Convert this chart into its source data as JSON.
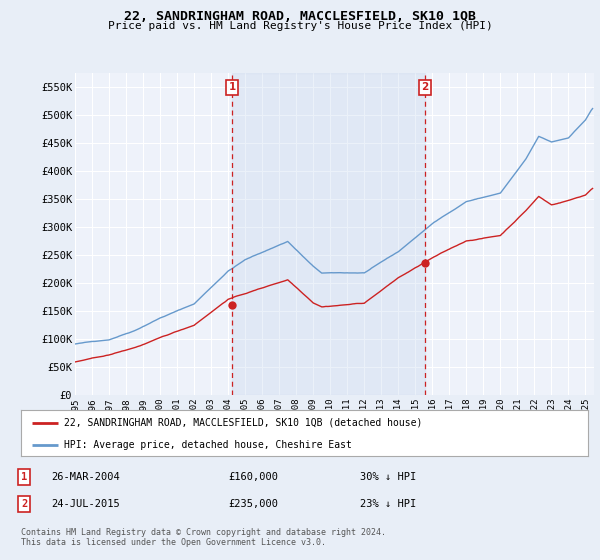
{
  "title": "22, SANDRINGHAM ROAD, MACCLESFIELD, SK10 1QB",
  "subtitle": "Price paid vs. HM Land Registry's House Price Index (HPI)",
  "ylim": [
    0,
    575000
  ],
  "xlim_start": 1995.0,
  "xlim_end": 2025.5,
  "background_color": "#e8eef7",
  "plot_bg_color": "#eef2fa",
  "grid_color": "#ffffff",
  "hpi_color": "#6699cc",
  "hpi_fill_color": "#c8d8ee",
  "price_color": "#cc2222",
  "vline_color": "#cc2222",
  "sale1_x": 2004.23,
  "sale1_y": 160000,
  "sale2_x": 2015.56,
  "sale2_y": 235000,
  "legend_line1": "22, SANDRINGHAM ROAD, MACCLESFIELD, SK10 1QB (detached house)",
  "legend_line2": "HPI: Average price, detached house, Cheshire East",
  "table_row1_num": "1",
  "table_row1_date": "26-MAR-2004",
  "table_row1_price": "£160,000",
  "table_row1_hpi": "30% ↓ HPI",
  "table_row2_num": "2",
  "table_row2_date": "24-JUL-2015",
  "table_row2_price": "£235,000",
  "table_row2_hpi": "23% ↓ HPI",
  "footer": "Contains HM Land Registry data © Crown copyright and database right 2024.\nThis data is licensed under the Open Government Licence v3.0."
}
